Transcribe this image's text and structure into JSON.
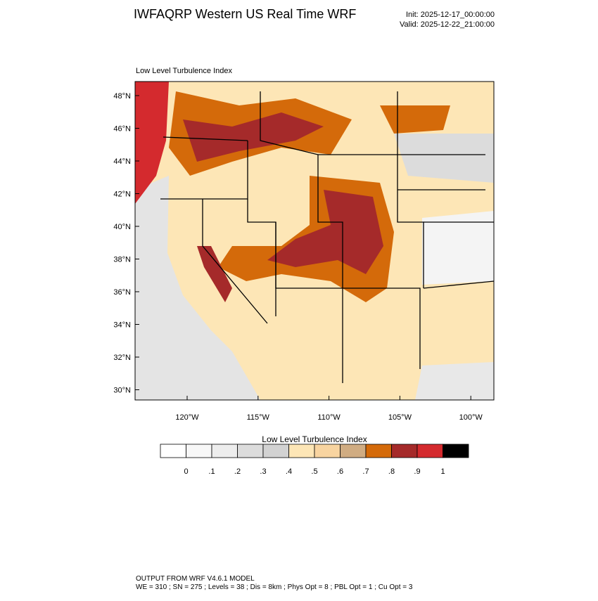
{
  "header": {
    "title": "IWFAQRP Western US Real Time WRF",
    "init": "Init: 2025-12-17_00:00:00",
    "valid": "Valid: 2025-12-22_21:00:00"
  },
  "map": {
    "subtitle": "Low Level Turbulence Index",
    "lat_labels": [
      "48°N",
      "46°N",
      "44°N",
      "42°N",
      "40°N",
      "38°N",
      "36°N",
      "34°N",
      "32°N",
      "30°N"
    ],
    "lon_labels": [
      "120°W",
      "115°W",
      "110°W",
      "105°W",
      "100°W"
    ]
  },
  "colorbar": {
    "title": "Low Level Turbulence Index",
    "colors": [
      "#ffffff",
      "#f7f7f7",
      "#ededed",
      "#dcdcdc",
      "#d2d2d2",
      "#fde6b6",
      "#f8d4a0",
      "#d0ac82",
      "#d46a0a",
      "#a52a2a",
      "#d42a2e",
      "#000000"
    ],
    "labels": [
      "0",
      ".1",
      ".2",
      ".3",
      ".4",
      ".5",
      ".6",
      ".7",
      ".8",
      ".9",
      "1"
    ]
  },
  "footer": {
    "line1": "OUTPUT FROM WRF V4.6.1 MODEL",
    "line2": "WE = 310 ; SN = 275 ; Levels = 38 ; Dis = 8km ; Phys Opt = 8 ; PBL Opt = 1 ; Cu Opt = 3"
  }
}
